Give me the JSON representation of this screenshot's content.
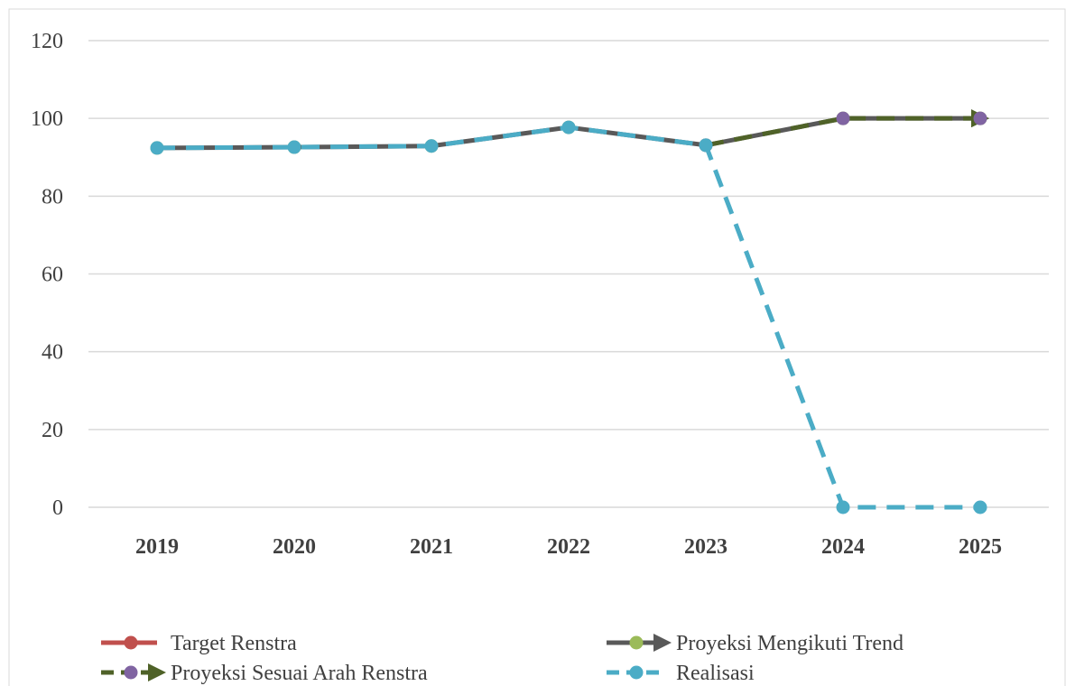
{
  "chart_data": {
    "type": "line",
    "categories": [
      "2019",
      "2020",
      "2021",
      "2022",
      "2023",
      "2024",
      "2025"
    ],
    "ylim": [
      0,
      120
    ],
    "yticks": [
      0,
      20,
      40,
      60,
      80,
      100,
      120
    ],
    "grid": true,
    "series": [
      {
        "name": "Target Renstra",
        "color": "#c0504d",
        "marker_color": "#c0504d",
        "dashed": false,
        "arrow": false,
        "values": [
          null,
          null,
          null,
          null,
          null,
          null,
          null
        ]
      },
      {
        "name": "Proyeksi Mengikuti Trend",
        "color": "#595959",
        "marker_color": "#9bbb59",
        "dashed": false,
        "arrow": true,
        "values": [
          92.4,
          92.6,
          92.9,
          97.7,
          93.1,
          100,
          100
        ]
      },
      {
        "name": "Proyeksi Sesuai Arah Renstra",
        "color": "#4f6228",
        "marker_color": "#8064a2",
        "dashed": true,
        "arrow": true,
        "values": [
          null,
          null,
          null,
          null,
          93.1,
          100,
          100
        ]
      },
      {
        "name": "Realisasi",
        "color": "#4bacc6",
        "marker_color": "#4bacc6",
        "dashed": true,
        "arrow": false,
        "values": [
          92.4,
          92.6,
          92.9,
          97.7,
          93.1,
          0,
          0
        ]
      }
    ]
  }
}
